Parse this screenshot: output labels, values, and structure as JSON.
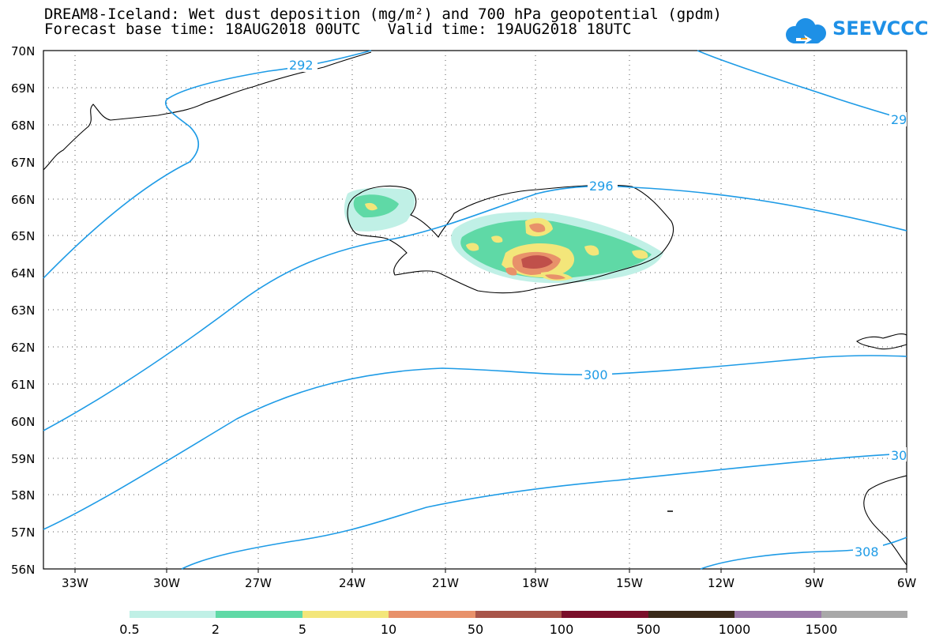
{
  "title": {
    "line1": "DREAM8-Iceland: Wet dust deposition (mg/m²) and 700 hPa geopotential (gpdm)",
    "line2": "Forecast base time: 18AUG2018 00UTC   Valid time: 19AUG2018 18UTC"
  },
  "logo": {
    "text": "SEEVCCC",
    "icon": "cloud-icon"
  },
  "map": {
    "region": "Iceland",
    "lat_ticks": [
      "70N",
      "69N",
      "68N",
      "67N",
      "66N",
      "65N",
      "64N",
      "63N",
      "62N",
      "61N",
      "60N",
      "59N",
      "58N",
      "57N",
      "56N"
    ],
    "lon_ticks": [
      "33W",
      "30W",
      "27W",
      "24W",
      "21W",
      "18W",
      "15W",
      "12W",
      "9W",
      "6W"
    ],
    "contour_labels": [
      "292",
      "296",
      "300",
      "30",
      "308",
      "29"
    ],
    "contour_color": "#1e9be6",
    "coastline_color": "#000000"
  },
  "legend": {
    "labels": [
      "0.5",
      "2",
      "5",
      "10",
      "50",
      "100",
      "500",
      "1000",
      "1500"
    ],
    "colors": [
      "#c0f0e6",
      "#5fd9a6",
      "#f3e67a",
      "#e8916a",
      "#a8554a",
      "#7a0f2a",
      "#3a2a1a",
      "#9a78a8",
      "#a8a8a8"
    ]
  }
}
